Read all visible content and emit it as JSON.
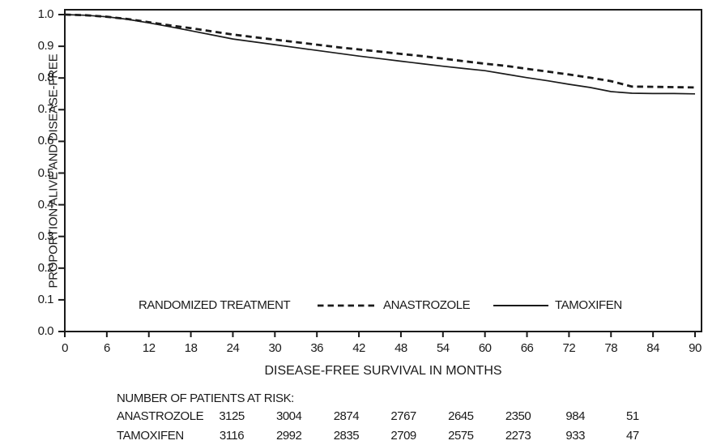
{
  "figure": {
    "legend": {
      "title": "RANDOMIZED TREATMENT",
      "series1_label": "ANASTROZOLE",
      "series2_label": "TAMOXIFEN"
    },
    "line_color": "#1a1a1a"
  },
  "chart_data": {
    "type": "line",
    "subtype": "kaplan-meier-survival",
    "title": "",
    "xlabel": "DISEASE-FREE SURVIVAL IN MONTHS",
    "ylabel": "PROPORTION ALIVE AND DISEASE-FREE",
    "xlim": [
      0,
      90
    ],
    "ylim": [
      0.0,
      1.0
    ],
    "grid": false,
    "legend_position": "inside-bottom",
    "legend_title": "RANDOMIZED TREATMENT",
    "x_ticks": [
      0,
      6,
      12,
      18,
      24,
      30,
      36,
      42,
      48,
      54,
      60,
      66,
      72,
      78,
      84,
      90
    ],
    "y_tick_labels": [
      "0.0",
      "0.1",
      "0.2",
      "0.3",
      "0.4",
      "0.5",
      "0.6",
      "0.7",
      "0.8",
      "0.9",
      "1.0"
    ],
    "x": [
      0,
      3,
      6,
      9,
      12,
      15,
      18,
      21,
      24,
      27,
      30,
      33,
      36,
      39,
      42,
      45,
      48,
      51,
      54,
      57,
      60,
      63,
      66,
      69,
      72,
      75,
      78,
      81,
      84,
      87,
      90
    ],
    "series": [
      {
        "name": "ANASTROZOLE",
        "style": "dashed",
        "values": [
          1.0,
          0.998,
          0.993,
          0.986,
          0.976,
          0.966,
          0.957,
          0.947,
          0.937,
          0.929,
          0.921,
          0.913,
          0.905,
          0.897,
          0.89,
          0.883,
          0.876,
          0.869,
          0.861,
          0.853,
          0.845,
          0.838,
          0.829,
          0.82,
          0.811,
          0.801,
          0.79,
          0.773,
          0.772,
          0.771,
          0.77
        ]
      },
      {
        "name": "TAMOXIFEN",
        "style": "solid",
        "values": [
          1.0,
          0.998,
          0.993,
          0.985,
          0.974,
          0.962,
          0.949,
          0.936,
          0.923,
          0.914,
          0.905,
          0.896,
          0.887,
          0.878,
          0.869,
          0.861,
          0.853,
          0.845,
          0.837,
          0.83,
          0.823,
          0.812,
          0.801,
          0.791,
          0.78,
          0.77,
          0.757,
          0.752,
          0.751,
          0.751,
          0.75
        ]
      }
    ],
    "number_at_risk": {
      "header": "NUMBER OF PATIENTS AT RISK:",
      "rows": [
        {
          "label": "ANASTROZOLE",
          "values": [
            "3125",
            "3004",
            "2874",
            "2767",
            "2645",
            "2350",
            "984",
            "51"
          ]
        },
        {
          "label": "TAMOXIFEN",
          "values": [
            "3116",
            "2992",
            "2835",
            "2709",
            "2575",
            "2273",
            "933",
            "47"
          ]
        }
      ]
    }
  }
}
